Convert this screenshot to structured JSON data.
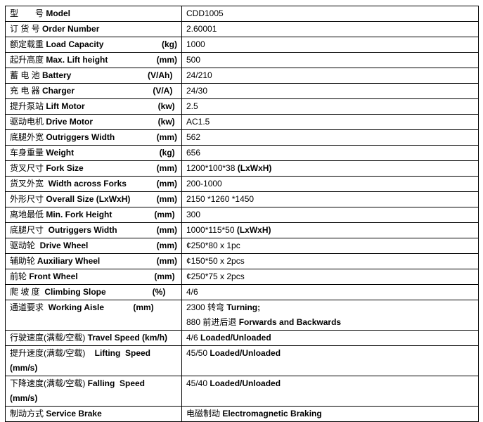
{
  "rows": [
    {
      "cn": "型　　号",
      "en": " Model",
      "unit": "",
      "value": [
        [
          {
            "t": "CDD1005"
          }
        ]
      ]
    },
    {
      "cn": "订 货 号",
      "en": " Order Number",
      "unit": "",
      "value": [
        [
          {
            "t": "2.60001"
          }
        ]
      ]
    },
    {
      "cn": "额定载重",
      "en": " Load Capacity",
      "unit": "(kg)",
      "value": [
        [
          {
            "t": "1000"
          }
        ]
      ]
    },
    {
      "cn": "起升高度",
      "en": " Max. Lift height",
      "unit": "(mm)",
      "value": [
        [
          {
            "t": "500"
          }
        ]
      ]
    },
    {
      "cn": "蓄 电 池",
      "en": " Battery",
      "unit": "(V/Ah)  ",
      "value": [
        [
          {
            "t": "24/210"
          }
        ]
      ]
    },
    {
      "cn": "充 电 器",
      "en": " Charger",
      "unit": "(V/A)  ",
      "value": [
        [
          {
            "t": "24/30"
          }
        ]
      ]
    },
    {
      "cn": "提升泵站",
      "en": " Lift Motor",
      "unit": "(kw) ",
      "value": [
        [
          {
            "t": "2.5"
          }
        ]
      ]
    },
    {
      "cn": "驱动电机",
      "en": " Drive Motor",
      "unit": "(kw) ",
      "value": [
        [
          {
            "t": "AC1.5"
          }
        ]
      ]
    },
    {
      "cn": "底腿外宽",
      "en": " Outriggers Width",
      "unit": "(mm)",
      "value": [
        [
          {
            "t": "562"
          }
        ]
      ]
    },
    {
      "cn": "车身重量",
      "en": " Weight",
      "unit": "(kg) ",
      "value": [
        [
          {
            "t": "656"
          }
        ]
      ]
    },
    {
      "cn": "货叉尺寸",
      "en": " Fork Size",
      "unit": "(mm)",
      "value": [
        [
          {
            "t": "1200*100*38 "
          },
          {
            "t": "(LxWxH)",
            "b": true
          }
        ]
      ]
    },
    {
      "cn": "货叉外宽",
      "en": "  Width across Forks",
      "unit": "(mm)",
      "value": [
        [
          {
            "t": "200-1000"
          }
        ]
      ]
    },
    {
      "cn": "外形尺寸",
      "en": " Overall Size (LxWxH)",
      "unit": "(mm)",
      "value": [
        [
          {
            "t": "2150 *1260 *1450"
          }
        ]
      ]
    },
    {
      "cn": "离地最低",
      "en": " Min. Fork Height",
      "unit": "(mm) ",
      "value": [
        [
          {
            "t": "300"
          }
        ]
      ]
    },
    {
      "cn": "底腿尺寸",
      "en": "  Outriggers Width",
      "unit": "(mm)",
      "value": [
        [
          {
            "t": "1000*115*50 "
          },
          {
            "t": "(LxWxH)",
            "b": true
          }
        ]
      ]
    },
    {
      "cn": "驱动轮",
      "en": "  Drive Wheel",
      "unit": "(mm)",
      "value": [
        [
          {
            "t": "¢250*80 x 1pc"
          }
        ]
      ]
    },
    {
      "cn": "辅助轮",
      "en": " Auxiliary Wheel",
      "unit": "(mm)",
      "value": [
        [
          {
            "t": "¢150*50 x 2pcs"
          }
        ]
      ]
    },
    {
      "cn": "前轮",
      "en": " Front Wheel",
      "unit": "(mm) ",
      "value": [
        [
          {
            "t": "¢250*75 x 2pcs"
          }
        ]
      ]
    },
    {
      "cn": "爬 坡 度",
      "en": "  Climbing Slope",
      "unit": "(%)     ",
      "value": [
        [
          {
            "t": "4/6"
          }
        ]
      ]
    },
    {
      "cn": "通道要求",
      "en": "  Working Aisle",
      "unit": "(mm)          ",
      "value": [
        [
          {
            "t": "2300 转弯 "
          },
          {
            "t": "Turning;",
            "b": true
          }
        ],
        [
          {
            "t": "880 前进后退 "
          },
          {
            "t": "Forwards and Backwards",
            "b": true
          }
        ]
      ]
    },
    {
      "cn": "行驶速度(满载/空载)",
      "en": " Travel Speed (km/h)",
      "unit": "",
      "value": [
        [
          {
            "t": "4/6 "
          },
          {
            "t": "Loaded/Unloaded",
            "b": true
          }
        ]
      ]
    },
    {
      "cn": "提升速度(满载/空载)",
      "en": "    Lifting  Speed",
      "unit": "",
      "en2": "(mm/s)",
      "value": [
        [
          {
            "t": "45/50 "
          },
          {
            "t": "Loaded/Unloaded",
            "b": true
          }
        ]
      ]
    },
    {
      "cn": "下降速度(满载/空载)",
      "en": " Falling  Speed",
      "unit": "",
      "en2": "(mm/s)",
      "value": [
        [
          {
            "t": "45/40 "
          },
          {
            "t": "Loaded/Unloaded",
            "b": true
          }
        ]
      ]
    },
    {
      "cn": "制动方式",
      "en": " Service Brake",
      "unit": "",
      "value": [
        [
          {
            "t": "电磁制动 "
          },
          {
            "t": "Electromagnetic Braking",
            "b": true
          }
        ]
      ]
    }
  ]
}
